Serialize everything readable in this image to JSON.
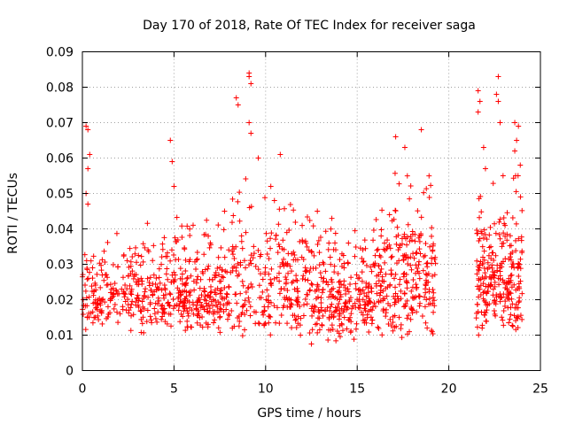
{
  "chart_data": {
    "type": "scatter",
    "title": "Day 170 of 2018, Rate Of TEC Index for receiver saga",
    "xlabel": "GPS time / hours",
    "ylabel": "ROTI / TECUs",
    "xlim": [
      0,
      25
    ],
    "ylim": [
      0,
      0.09
    ],
    "xticks": [
      0,
      5,
      10,
      15,
      20,
      25
    ],
    "xtick_labels": [
      "0",
      "5",
      "10",
      "15",
      "20",
      "25"
    ],
    "yticks": [
      0,
      0.01,
      0.02,
      0.03,
      0.04,
      0.05,
      0.06,
      0.07,
      0.08,
      0.09
    ],
    "ytick_labels": [
      "0",
      "0.01",
      "0.02",
      "0.03",
      "0.04",
      "0.05",
      "0.06",
      "0.07",
      "0.08",
      "0.09"
    ],
    "grid": true,
    "marker": "+",
    "color": "#ff0000",
    "data_gap_hours": [
      19.3,
      21.5
    ],
    "highlights": [
      {
        "x": 0.2,
        "y": 0.069
      },
      {
        "x": 0.3,
        "y": 0.068
      },
      {
        "x": 0.4,
        "y": 0.061
      },
      {
        "x": 0.3,
        "y": 0.057
      },
      {
        "x": 0.2,
        "y": 0.05
      },
      {
        "x": 0.3,
        "y": 0.047
      },
      {
        "x": 4.8,
        "y": 0.065
      },
      {
        "x": 4.9,
        "y": 0.059
      },
      {
        "x": 5.0,
        "y": 0.052
      },
      {
        "x": 8.4,
        "y": 0.077
      },
      {
        "x": 8.5,
        "y": 0.075
      },
      {
        "x": 9.1,
        "y": 0.084
      },
      {
        "x": 9.1,
        "y": 0.083
      },
      {
        "x": 9.2,
        "y": 0.081
      },
      {
        "x": 9.1,
        "y": 0.07
      },
      {
        "x": 9.2,
        "y": 0.067
      },
      {
        "x": 9.6,
        "y": 0.06
      },
      {
        "x": 10.8,
        "y": 0.061
      },
      {
        "x": 17.1,
        "y": 0.066
      },
      {
        "x": 17.6,
        "y": 0.063
      },
      {
        "x": 18.5,
        "y": 0.068
      },
      {
        "x": 21.6,
        "y": 0.079
      },
      {
        "x": 21.7,
        "y": 0.076
      },
      {
        "x": 21.6,
        "y": 0.073
      },
      {
        "x": 21.9,
        "y": 0.063
      },
      {
        "x": 22.0,
        "y": 0.057
      },
      {
        "x": 22.7,
        "y": 0.083
      },
      {
        "x": 22.6,
        "y": 0.078
      },
      {
        "x": 22.7,
        "y": 0.076
      },
      {
        "x": 22.8,
        "y": 0.07
      },
      {
        "x": 23.6,
        "y": 0.07
      },
      {
        "x": 23.8,
        "y": 0.069
      },
      {
        "x": 23.7,
        "y": 0.065
      },
      {
        "x": 23.6,
        "y": 0.062
      },
      {
        "x": 23.9,
        "y": 0.058
      }
    ],
    "segments": [
      {
        "x_start": 0.0,
        "x_end": 4.5,
        "y_min": 0.01,
        "y_max": 0.042,
        "mean": 0.024
      },
      {
        "x_start": 4.5,
        "x_end": 8.0,
        "y_min": 0.01,
        "y_max": 0.045,
        "mean": 0.026
      },
      {
        "x_start": 8.0,
        "x_end": 12.5,
        "y_min": 0.008,
        "y_max": 0.055,
        "mean": 0.027
      },
      {
        "x_start": 12.5,
        "x_end": 16.0,
        "y_min": 0.007,
        "y_max": 0.045,
        "mean": 0.023
      },
      {
        "x_start": 16.0,
        "x_end": 19.3,
        "y_min": 0.008,
        "y_max": 0.06,
        "mean": 0.026
      },
      {
        "x_start": 21.5,
        "x_end": 24.0,
        "y_min": 0.009,
        "y_max": 0.055,
        "mean": 0.025
      }
    ],
    "points_per_segment": 260,
    "random_seed": 170
  }
}
